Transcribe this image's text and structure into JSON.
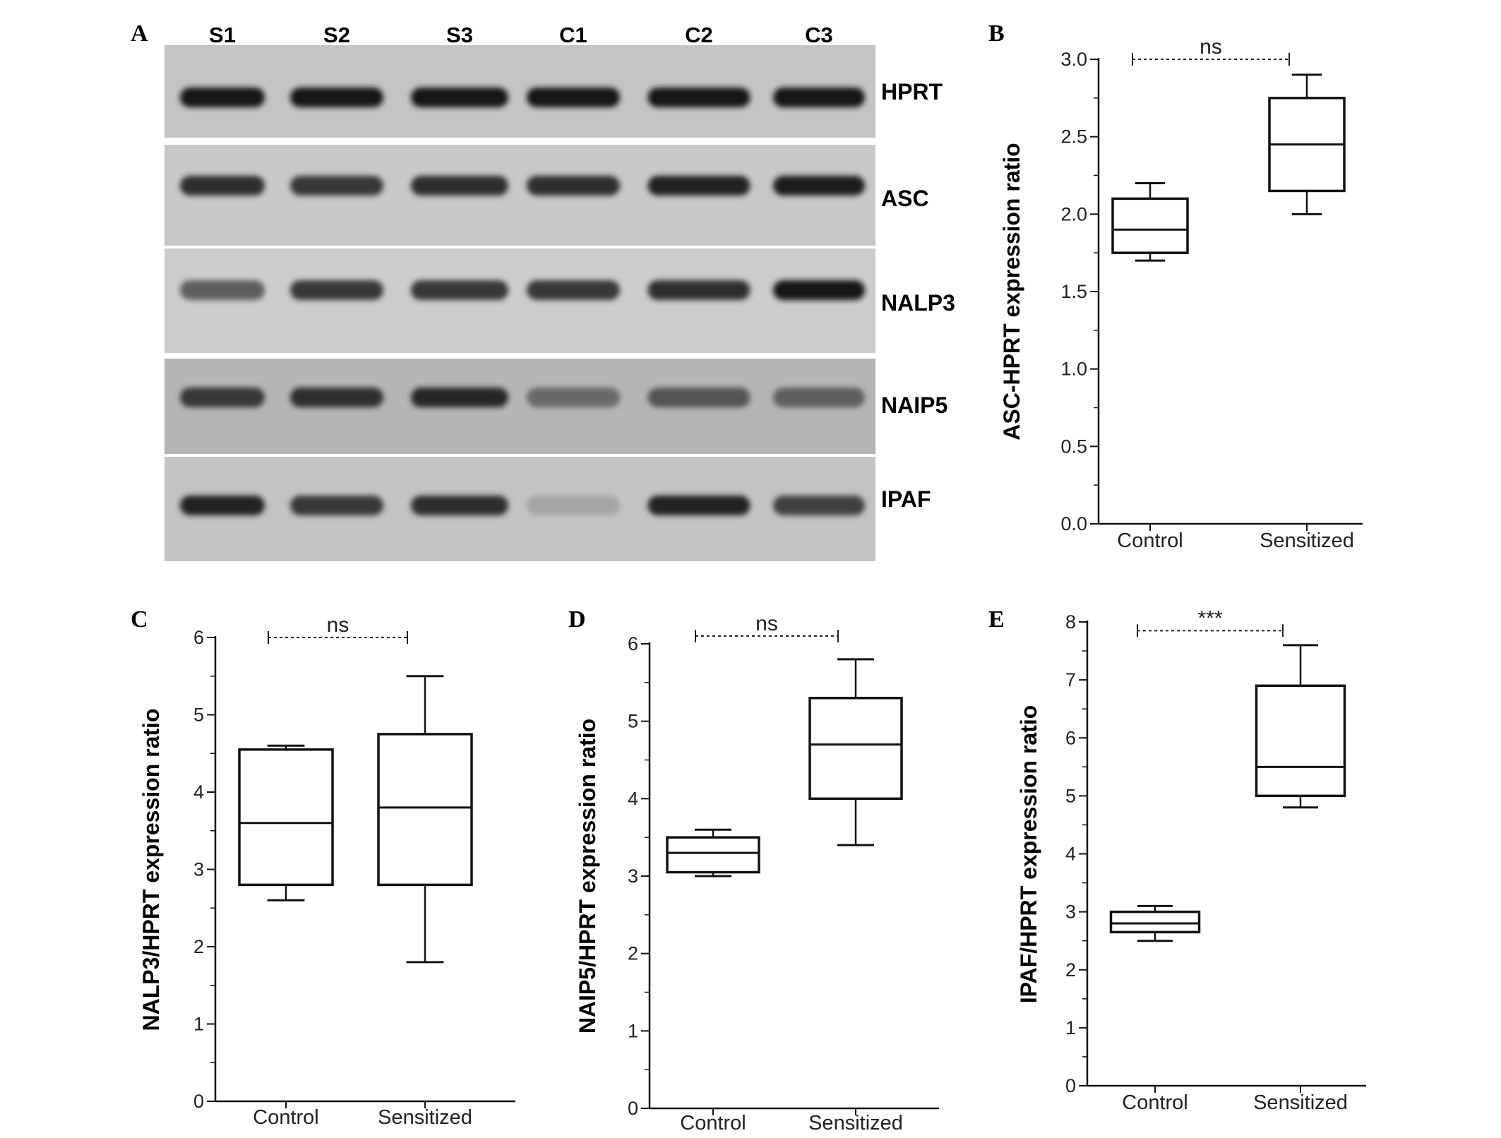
{
  "gel": {
    "panel_label": "A",
    "lanes": [
      "S1",
      "S2",
      "S3",
      "C1",
      "C2",
      "C3"
    ],
    "bands": [
      {
        "label": "HPRT",
        "intensity": [
          0.95,
          0.95,
          0.95,
          0.95,
          0.95,
          0.95
        ]
      },
      {
        "label": "ASC",
        "intensity": [
          0.85,
          0.8,
          0.85,
          0.85,
          0.9,
          0.92
        ]
      },
      {
        "label": "NALP3",
        "intensity": [
          0.6,
          0.8,
          0.8,
          0.8,
          0.85,
          0.95
        ]
      },
      {
        "label": "NAIP5",
        "intensity": [
          0.8,
          0.85,
          0.88,
          0.55,
          0.65,
          0.6
        ]
      },
      {
        "label": "IPAF",
        "intensity": [
          0.9,
          0.8,
          0.85,
          0.25,
          0.9,
          0.75
        ]
      }
    ]
  },
  "chart_data": [
    {
      "panel_label": "B",
      "type": "box",
      "categories": [
        "Control",
        "Sensitized"
      ],
      "ylabel": "ASC-HPRT expression ratio",
      "ylim": [
        0,
        3.0
      ],
      "yticks": [
        "0.0",
        "0.5",
        "1.0",
        "1.5",
        "2.0",
        "2.5",
        "3.0"
      ],
      "boxes": [
        {
          "min": 1.7,
          "q1": 1.75,
          "median": 1.9,
          "q3": 2.1,
          "max": 2.2
        },
        {
          "min": 2.0,
          "q1": 2.15,
          "median": 2.45,
          "q3": 2.75,
          "max": 2.9
        }
      ],
      "significance": "ns",
      "significance_y": 3.0
    },
    {
      "panel_label": "C",
      "type": "box",
      "categories": [
        "Control",
        "Sensitized"
      ],
      "ylabel": "NALP3/HPRT expression ratio",
      "ylim": [
        0,
        6
      ],
      "yticks": [
        "0",
        "1",
        "2",
        "3",
        "4",
        "5",
        "6"
      ],
      "boxes": [
        {
          "min": 2.6,
          "q1": 2.8,
          "median": 3.6,
          "q3": 4.55,
          "max": 4.6
        },
        {
          "min": 1.8,
          "q1": 2.8,
          "median": 3.8,
          "q3": 4.75,
          "max": 5.5
        }
      ],
      "significance": "ns",
      "significance_y": 6.0
    },
    {
      "panel_label": "D",
      "type": "box",
      "categories": [
        "Control",
        "Sensitized"
      ],
      "ylabel": "NAIP5/HPRT expression ratio",
      "ylim": [
        0,
        6
      ],
      "yticks": [
        "0",
        "1",
        "2",
        "3",
        "4",
        "5",
        "6"
      ],
      "boxes": [
        {
          "min": 3.0,
          "q1": 3.05,
          "median": 3.3,
          "q3": 3.5,
          "max": 3.6
        },
        {
          "min": 3.4,
          "q1": 4.0,
          "median": 4.7,
          "q3": 5.3,
          "max": 5.8
        }
      ],
      "significance": "ns",
      "significance_y": 6.1
    },
    {
      "panel_label": "E",
      "type": "box",
      "categories": [
        "Control",
        "Sensitized"
      ],
      "ylabel": "IPAF/HPRT expression ratio",
      "ylim": [
        0,
        8
      ],
      "yticks": [
        "0",
        "1",
        "2",
        "3",
        "4",
        "5",
        "6",
        "7",
        "8"
      ],
      "boxes": [
        {
          "min": 2.5,
          "q1": 2.65,
          "median": 2.8,
          "q3": 3.0,
          "max": 3.1
        },
        {
          "min": 4.8,
          "q1": 5.0,
          "median": 5.5,
          "q3": 6.9,
          "max": 7.6
        }
      ],
      "significance": "***",
      "significance_y": 7.85
    }
  ]
}
